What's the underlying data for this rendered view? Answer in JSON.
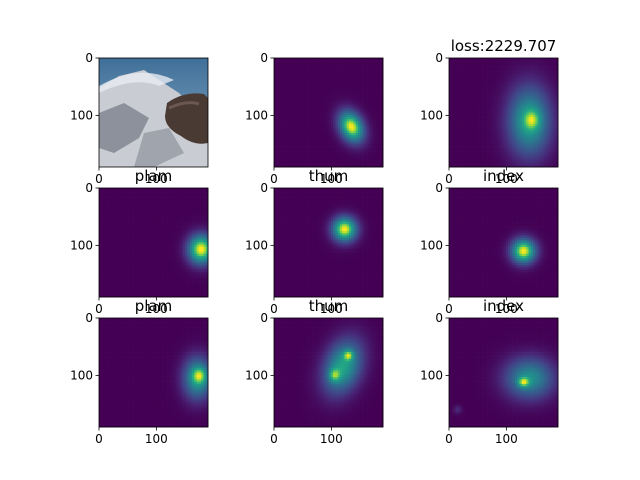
{
  "figure": {
    "grid_rows": 3,
    "grid_cols": 3
  },
  "colormap": {
    "name": "viridis",
    "low": "#440154",
    "mid": "#21918c",
    "high": "#fde725"
  },
  "chart_data": [
    {
      "type": "heatmap",
      "row": 0,
      "col": 0,
      "title": "",
      "content": "photo",
      "xticks": [
        "0",
        "100"
      ],
      "yticks": [
        "0",
        "100"
      ],
      "xlim": [
        0,
        190
      ],
      "ylim": [
        190,
        0
      ]
    },
    {
      "type": "heatmap",
      "row": 0,
      "col": 1,
      "title": "",
      "peaks": [
        {
          "x": 135,
          "y": 120,
          "sx": 14,
          "sy": 20,
          "rot": -0.45,
          "a": 1.0
        }
      ],
      "xticks": [
        "0",
        "100"
      ],
      "yticks": [
        "0",
        "100"
      ],
      "xlim": [
        0,
        190
      ],
      "ylim": [
        190,
        0
      ]
    },
    {
      "type": "heatmap",
      "row": 0,
      "col": 2,
      "title": "loss:2229.707",
      "peaks": [
        {
          "x": 140,
          "y": 110,
          "sx": 26,
          "sy": 42,
          "rot": 0,
          "a": 0.75
        },
        {
          "x": 145,
          "y": 108,
          "sx": 10,
          "sy": 12,
          "rot": 0,
          "a": 0.3
        }
      ],
      "xticks": [
        "0",
        "100"
      ],
      "yticks": [
        "0",
        "100"
      ],
      "xlim": [
        0,
        190
      ],
      "ylim": [
        190,
        0
      ]
    },
    {
      "type": "heatmap",
      "row": 1,
      "col": 0,
      "title": "plam",
      "peaks": [
        {
          "x": 178,
          "y": 107,
          "sx": 16,
          "sy": 18,
          "rot": 0,
          "a": 1.0
        }
      ],
      "xticks": [
        "0",
        "100"
      ],
      "yticks": [
        "0",
        "100"
      ],
      "xlim": [
        0,
        190
      ],
      "ylim": [
        190,
        0
      ]
    },
    {
      "type": "heatmap",
      "row": 1,
      "col": 1,
      "title": "thum",
      "peaks": [
        {
          "x": 123,
          "y": 72,
          "sx": 15,
          "sy": 15,
          "rot": 0,
          "a": 1.0
        }
      ],
      "xticks": [
        "0",
        "100"
      ],
      "yticks": [
        "0",
        "100"
      ],
      "xlim": [
        0,
        190
      ],
      "ylim": [
        190,
        0
      ]
    },
    {
      "type": "heatmap",
      "row": 1,
      "col": 2,
      "title": "index",
      "peaks": [
        {
          "x": 130,
          "y": 110,
          "sx": 15,
          "sy": 15,
          "rot": 0,
          "a": 1.0
        }
      ],
      "xticks": [
        "0",
        "100"
      ],
      "yticks": [
        "0",
        "100"
      ],
      "xlim": [
        0,
        190
      ],
      "ylim": [
        190,
        0
      ]
    },
    {
      "type": "heatmap",
      "row": 2,
      "col": 0,
      "title": "plam",
      "peaks": [
        {
          "x": 172,
          "y": 105,
          "sx": 18,
          "sy": 26,
          "rot": 0,
          "a": 0.8
        },
        {
          "x": 175,
          "y": 100,
          "sx": 9,
          "sy": 10,
          "rot": 0,
          "a": 0.4
        }
      ],
      "xticks": [
        "0",
        "100"
      ],
      "yticks": [
        "0",
        "100"
      ],
      "xlim": [
        0,
        190
      ],
      "ylim": [
        190,
        0
      ]
    },
    {
      "type": "heatmap",
      "row": 2,
      "col": 1,
      "title": "thum",
      "peaks": [
        {
          "x": 120,
          "y": 85,
          "sx": 22,
          "sy": 34,
          "rot": 0.35,
          "a": 0.7
        },
        {
          "x": 130,
          "y": 65,
          "sx": 6,
          "sy": 6,
          "rot": 0,
          "a": 0.4
        },
        {
          "x": 105,
          "y": 100,
          "sx": 7,
          "sy": 8,
          "rot": 0,
          "a": 0.35
        }
      ],
      "xticks": [
        "0",
        "100"
      ],
      "yticks": [
        "0",
        "100"
      ],
      "xlim": [
        0,
        190
      ],
      "ylim": [
        190,
        0
      ]
    },
    {
      "type": "heatmap",
      "row": 2,
      "col": 2,
      "title": "index",
      "peaks": [
        {
          "x": 140,
          "y": 105,
          "sx": 30,
          "sy": 25,
          "rot": 0,
          "a": 0.6
        },
        {
          "x": 130,
          "y": 112,
          "sx": 7,
          "sy": 6,
          "rot": 0,
          "a": 0.45
        },
        {
          "x": 15,
          "y": 160,
          "sx": 5,
          "sy": 5,
          "rot": 0,
          "a": 0.15
        }
      ],
      "xticks": [
        "0",
        "100"
      ],
      "yticks": [
        "0",
        "100"
      ],
      "xlim": [
        0,
        190
      ],
      "ylim": [
        190,
        0
      ]
    }
  ]
}
